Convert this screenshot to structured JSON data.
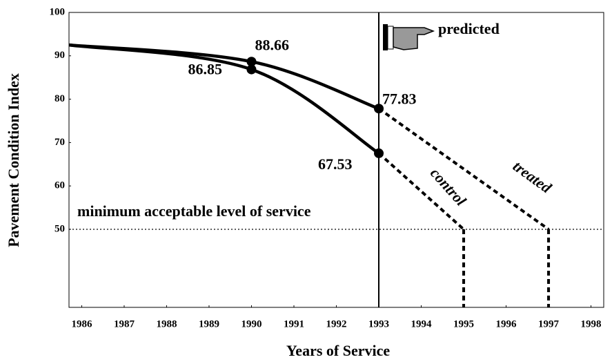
{
  "chart_data": {
    "type": "line",
    "x_label": "Years of Service",
    "y_label": "Pavement Condition Index",
    "xlim": [
      1985.7,
      1998.3
    ],
    "ylim": [
      32,
      100
    ],
    "xticks": [
      1986,
      1987,
      1988,
      1989,
      1990,
      1991,
      1992,
      1993,
      1994,
      1995,
      1996,
      1997,
      1998
    ],
    "yticks": [
      50,
      60,
      70,
      80,
      90,
      100
    ],
    "divider_x": 1993,
    "threshold": 50,
    "threshold_label": "minimum acceptable level of service",
    "predicted_label": "predicted",
    "series": [
      {
        "x": [
          1985.7,
          1990,
          1993
        ],
        "values": [
          92.5,
          88.66,
          77.83
        ],
        "color": "#000000",
        "style": "solid"
      },
      {
        "x": [
          1985.7,
          1990,
          1993
        ],
        "values": [
          92.5,
          86.85,
          67.53
        ],
        "color": "#000000",
        "style": "solid"
      },
      {
        "name": "treated",
        "x": [
          1993,
          1997
        ],
        "values": [
          77.83,
          50
        ],
        "color": "#000000",
        "style": "dashed"
      },
      {
        "name": "control",
        "x": [
          1993,
          1995
        ],
        "values": [
          67.53,
          50
        ],
        "color": "#000000",
        "style": "dashed"
      }
    ]
  }
}
